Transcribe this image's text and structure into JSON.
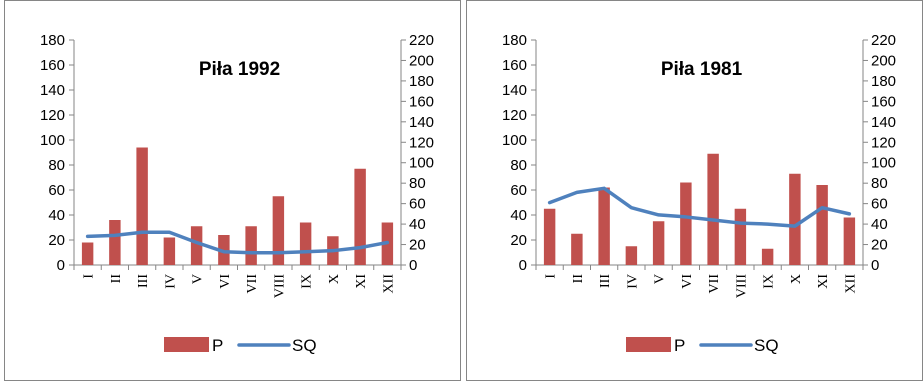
{
  "chart_data": [
    {
      "type": "bar",
      "title": "Piła 1992",
      "categories": [
        "I",
        "II",
        "III",
        "IV",
        "V",
        "VI",
        "VII",
        "VIII",
        "IX",
        "X",
        "XI",
        "XII"
      ],
      "series": [
        {
          "name": "P",
          "type": "bar",
          "axis": "left",
          "values": [
            18,
            36,
            94,
            22,
            31,
            24,
            31,
            55,
            34,
            23,
            77,
            34
          ]
        },
        {
          "name": "SQ",
          "type": "line",
          "axis": "right",
          "values": [
            28,
            29,
            32,
            32,
            22,
            13,
            12,
            12,
            13,
            14,
            17,
            22
          ]
        }
      ],
      "ylim": [
        0,
        180
      ],
      "yticks": [
        "180",
        "160",
        "140",
        "120",
        "100",
        "80",
        "60",
        "40",
        "20",
        "0"
      ],
      "y2lim": [
        0,
        220
      ],
      "y2ticks": [
        "220",
        "200",
        "180",
        "160",
        "140",
        "120",
        "100",
        "80",
        "60",
        "40",
        "20",
        "0"
      ],
      "legend": "bottom",
      "colors": {
        "bar": "#c0504d",
        "line": "#4f81bd"
      }
    },
    {
      "type": "bar",
      "title": "Piła 1981",
      "categories": [
        "I",
        "II",
        "III",
        "IV",
        "V",
        "VI",
        "VII",
        "VIII",
        "IX",
        "X",
        "XI",
        "XII"
      ],
      "series": [
        {
          "name": "P",
          "type": "bar",
          "axis": "left",
          "values": [
            45,
            25,
            62,
            15,
            35,
            66,
            89,
            45,
            13,
            73,
            64,
            38
          ]
        },
        {
          "name": "SQ",
          "type": "line",
          "axis": "right",
          "values": [
            61,
            71,
            75,
            56,
            49,
            47,
            44,
            41,
            40,
            38,
            56,
            50
          ]
        }
      ],
      "ylim": [
        0,
        180
      ],
      "yticks": [
        "180",
        "160",
        "140",
        "120",
        "100",
        "80",
        "60",
        "40",
        "20",
        "0"
      ],
      "y2lim": [
        0,
        220
      ],
      "y2ticks": [
        "220",
        "200",
        "180",
        "160",
        "140",
        "120",
        "100",
        "80",
        "60",
        "40",
        "20",
        "0"
      ],
      "legend": "bottom",
      "colors": {
        "bar": "#c0504d",
        "line": "#4f81bd"
      }
    }
  ]
}
